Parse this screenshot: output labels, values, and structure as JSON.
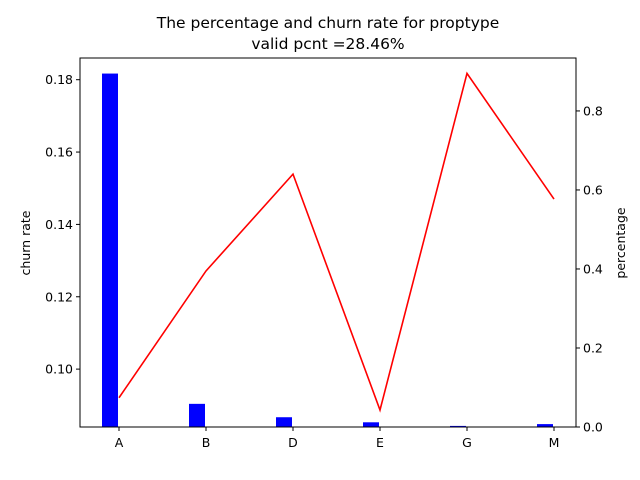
{
  "chart_data": {
    "type": "bar",
    "title": "The percentage and churn rate for proptype",
    "subtitle": "valid pcnt =28.46%",
    "categories": [
      "A",
      "B",
      "D",
      "E",
      "G",
      "M"
    ],
    "ylabel_left": "churn rate",
    "ylabel_right": "percentage",
    "left_axis": {
      "ylim": [
        0.084,
        0.186
      ],
      "ticks": [
        0.1,
        0.12,
        0.14,
        0.16,
        0.18
      ],
      "tick_labels": [
        "0.10",
        "0.12",
        "0.14",
        "0.16",
        "0.18"
      ]
    },
    "right_axis": {
      "ylim": [
        0.0,
        0.934
      ],
      "ticks": [
        0.0,
        0.2,
        0.4,
        0.6,
        0.8
      ],
      "tick_labels": [
        "0.0",
        "0.2",
        "0.4",
        "0.6",
        "0.8"
      ]
    },
    "series": [
      {
        "type": "bar",
        "axis": "left",
        "color": "#0000ff",
        "values": [
          0.1817,
          0.0904,
          0.0867,
          0.0853,
          0.0843,
          0.0848
        ]
      },
      {
        "type": "line",
        "axis": "right",
        "color": "#ff0000",
        "values": [
          0.074,
          0.395,
          0.64,
          0.043,
          0.895,
          0.577
        ]
      }
    ],
    "grid": false,
    "legend": "none"
  }
}
